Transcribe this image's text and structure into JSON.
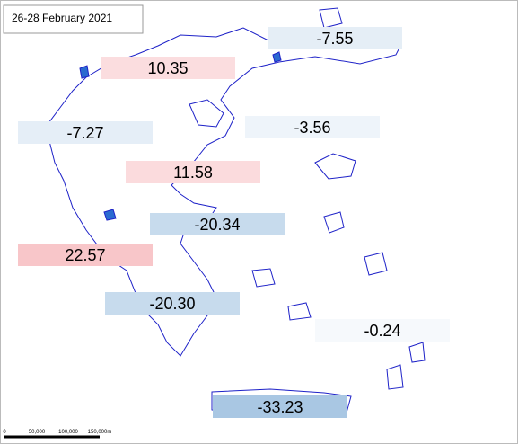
{
  "header": {
    "title": "26-28 February 2021"
  },
  "regions": [
    {
      "value": -7.55,
      "label": "-7.55"
    },
    {
      "value": 10.35,
      "label": "10.35"
    },
    {
      "value": -7.27,
      "label": "-7.27"
    },
    {
      "value": -3.56,
      "label": "-3.56"
    },
    {
      "value": 11.58,
      "label": "11.58"
    },
    {
      "value": -20.34,
      "label": "-20.34"
    },
    {
      "value": 22.57,
      "label": "22.57"
    },
    {
      "value": -20.3,
      "label": "-20.30"
    },
    {
      "value": -0.24,
      "label": "-0.24"
    },
    {
      "value": -33.23,
      "label": "-33.23"
    }
  ],
  "scale_bar": {
    "labels": [
      "0",
      "50,000",
      "100,000",
      "150,000m"
    ]
  }
}
